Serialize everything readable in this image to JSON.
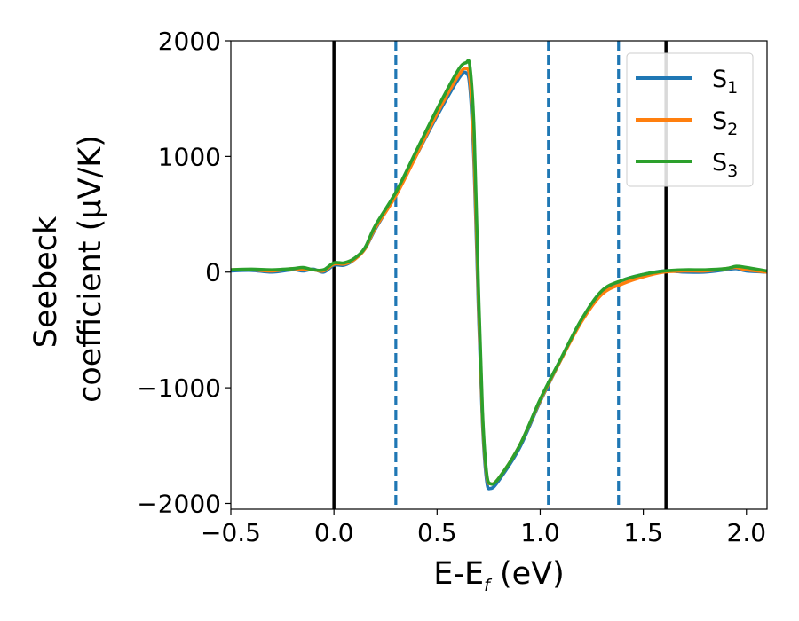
{
  "chart_data": {
    "type": "line",
    "xlabel": {
      "main": "E-E",
      "sub": "f",
      "tail": " (eV)"
    },
    "ylabel": {
      "line1": "Seebeck",
      "line2": "coefficient  (μV/K)"
    },
    "xlim": [
      -0.5,
      2.1
    ],
    "ylim": [
      -2050,
      2000
    ],
    "x_ticks": [
      -0.5,
      0.0,
      0.5,
      1.0,
      1.5,
      2.0
    ],
    "x_tick_labels": [
      "−0.5",
      "0.0",
      "0.5",
      "1.0",
      "1.5",
      "2.0"
    ],
    "y_ticks": [
      2000,
      1000,
      0,
      -1000,
      -2000
    ],
    "y_tick_labels": [
      "2000",
      "1000",
      "0",
      "−1000",
      "−2000"
    ],
    "grid": false,
    "legend_position": "top-right",
    "vertical_lines": [
      {
        "x": 0.0,
        "style": "solid",
        "color": "#000000"
      },
      {
        "x": 0.3,
        "style": "dashed",
        "color": "#1f77b4"
      },
      {
        "x": 1.04,
        "style": "dashed",
        "color": "#1f77b4"
      },
      {
        "x": 1.38,
        "style": "dashed",
        "color": "#1f77b4"
      },
      {
        "x": 1.61,
        "style": "solid",
        "color": "#000000"
      }
    ],
    "series": [
      {
        "name": "S",
        "sub": "1",
        "color": "#1f77b4",
        "x": [
          -0.5,
          -0.4,
          -0.3,
          -0.2,
          -0.15,
          -0.1,
          -0.05,
          0.0,
          0.05,
          0.1,
          0.15,
          0.2,
          0.3,
          0.4,
          0.5,
          0.6,
          0.64,
          0.66,
          0.68,
          0.7,
          0.72,
          0.74,
          0.76,
          0.8,
          0.9,
          1.0,
          1.1,
          1.2,
          1.3,
          1.4,
          1.5,
          1.6,
          1.7,
          1.8,
          1.9,
          1.95,
          2.0,
          2.1
        ],
        "y": [
          10,
          15,
          0,
          20,
          10,
          25,
          0,
          60,
          60,
          110,
          200,
          370,
          670,
          1010,
          1350,
          1660,
          1725,
          1580,
          900,
          -300,
          -1300,
          -1800,
          -1870,
          -1800,
          -1520,
          -1120,
          -760,
          -420,
          -170,
          -70,
          -20,
          10,
          0,
          0,
          20,
          30,
          10,
          0
        ]
      },
      {
        "name": "S",
        "sub": "2",
        "color": "#ff7f0e",
        "x": [
          -0.5,
          -0.4,
          -0.3,
          -0.2,
          -0.15,
          -0.1,
          -0.05,
          0.0,
          0.05,
          0.1,
          0.15,
          0.2,
          0.3,
          0.4,
          0.5,
          0.6,
          0.64,
          0.66,
          0.68,
          0.7,
          0.72,
          0.74,
          0.76,
          0.8,
          0.9,
          1.0,
          1.1,
          1.2,
          1.3,
          1.4,
          1.5,
          1.6,
          1.7,
          1.8,
          1.9,
          1.95,
          2.0,
          2.1
        ],
        "y": [
          20,
          20,
          10,
          30,
          20,
          20,
          10,
          70,
          70,
          110,
          200,
          380,
          660,
          1010,
          1370,
          1690,
          1760,
          1650,
          1000,
          -200,
          -1250,
          -1750,
          -1830,
          -1780,
          -1500,
          -1110,
          -760,
          -430,
          -190,
          -100,
          -40,
          0,
          10,
          10,
          30,
          40,
          20,
          0
        ]
      },
      {
        "name": "S",
        "sub": "3",
        "color": "#2ca02c",
        "x": [
          -0.5,
          -0.4,
          -0.3,
          -0.2,
          -0.15,
          -0.1,
          -0.05,
          0.0,
          0.05,
          0.1,
          0.15,
          0.2,
          0.3,
          0.4,
          0.5,
          0.6,
          0.64,
          0.66,
          0.68,
          0.7,
          0.72,
          0.74,
          0.76,
          0.8,
          0.9,
          1.0,
          1.1,
          1.2,
          1.3,
          1.4,
          1.5,
          1.6,
          1.7,
          1.8,
          1.9,
          1.95,
          2.0,
          2.1
        ],
        "y": [
          20,
          25,
          20,
          30,
          40,
          20,
          20,
          80,
          80,
          120,
          210,
          400,
          690,
          1050,
          1410,
          1740,
          1810,
          1770,
          1200,
          -100,
          -1200,
          -1730,
          -1830,
          -1780,
          -1500,
          -1100,
          -750,
          -410,
          -160,
          -70,
          -20,
          10,
          20,
          20,
          30,
          50,
          40,
          10
        ]
      }
    ]
  }
}
